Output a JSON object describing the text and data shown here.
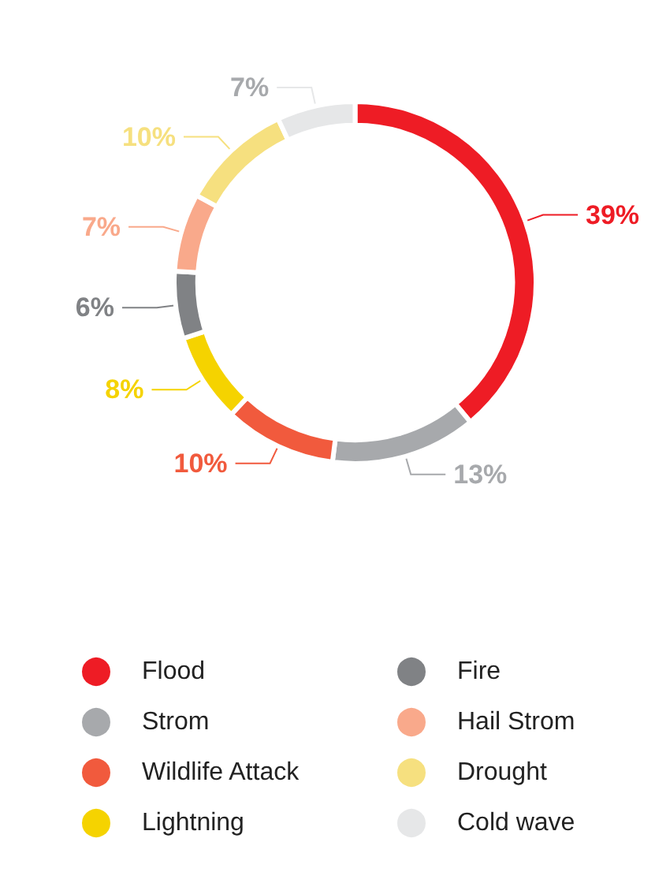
{
  "chart_data": {
    "type": "donut",
    "categories": [
      "Flood",
      "Strom",
      "Wildlife Attack",
      "Lightning",
      "Fire",
      "Hail Strom",
      "Drought",
      "Cold wave"
    ],
    "values": [
      39,
      13,
      10,
      8,
      6,
      7,
      10,
      7
    ],
    "value_labels": [
      "39%",
      "13%",
      "10%",
      "8%",
      "6%",
      "7%",
      "10%",
      "7%"
    ],
    "colors": [
      "#ee1c25",
      "#a7a9ac",
      "#f15a3d",
      "#f5d300",
      "#808285",
      "#f9a98b",
      "#f6e07f",
      "#e6e7e8"
    ],
    "legend": "bottom"
  }
}
